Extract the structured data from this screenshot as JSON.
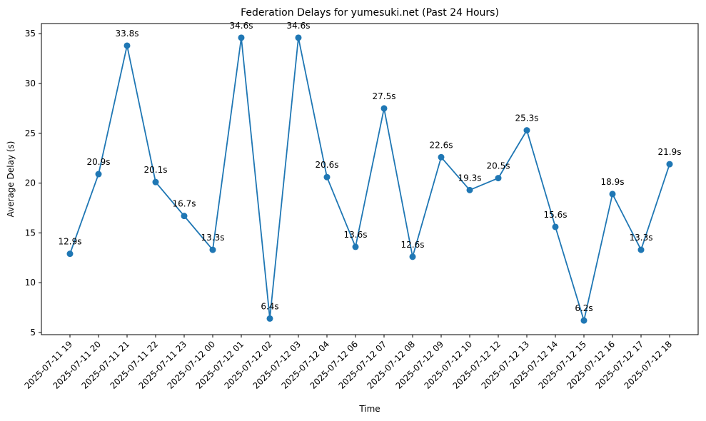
{
  "chart_data": {
    "type": "line",
    "title": "Federation Delays for yumesuki.net (Past 24 Hours)",
    "xlabel": "Time",
    "ylabel": "Average Delay (s)",
    "categories": [
      "2025-07-11 19",
      "2025-07-11 20",
      "2025-07-11 21",
      "2025-07-11 22",
      "2025-07-11 23",
      "2025-07-12 00",
      "2025-07-12 01",
      "2025-07-12 02",
      "2025-07-12 03",
      "2025-07-12 04",
      "2025-07-12 06",
      "2025-07-12 07",
      "2025-07-12 08",
      "2025-07-12 09",
      "2025-07-12 10",
      "2025-07-12 12",
      "2025-07-12 13",
      "2025-07-12 14",
      "2025-07-12 15",
      "2025-07-12 16",
      "2025-07-12 17",
      "2025-07-12 18"
    ],
    "values": [
      12.9,
      20.9,
      33.8,
      20.1,
      16.7,
      13.3,
      34.6,
      6.4,
      34.6,
      20.6,
      13.6,
      27.5,
      12.6,
      22.6,
      19.3,
      20.5,
      25.3,
      15.6,
      6.2,
      18.9,
      13.3,
      21.9
    ],
    "data_labels": [
      "12.9s",
      "20.9s",
      "33.8s",
      "20.1s",
      "16.7s",
      "13.3s",
      "34.6s",
      "6.4s",
      "34.6s",
      "20.6s",
      "13.6s",
      "27.5s",
      "12.6s",
      "22.6s",
      "19.3s",
      "20.5s",
      "25.3s",
      "15.6s",
      "6.2s",
      "18.9s",
      "13.3s",
      "21.9s"
    ],
    "yticks": [
      "5",
      "10",
      "15",
      "20",
      "25",
      "30",
      "35"
    ],
    "ylim": [
      4.78,
      36.02
    ],
    "grid": false,
    "legend": "none",
    "line_color": "#1f77b4",
    "marker": "circle"
  }
}
